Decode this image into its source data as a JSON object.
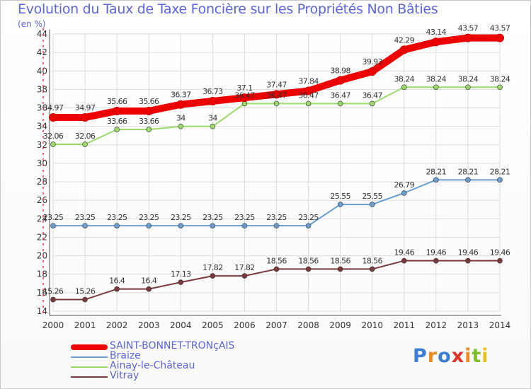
{
  "title": "Evolution du Taux de Taxe Foncière sur les Propriétés Non Bâties",
  "unit_label": "(en %)",
  "logo": "Proxiti",
  "chart_data": {
    "type": "line",
    "title": "Evolution du Taux de Taxe Foncière sur les Propriétés Non Bâties",
    "ylabel": "(en %)",
    "ylim": [
      14,
      44
    ],
    "yticks": [
      14,
      16,
      18,
      20,
      22,
      24,
      26,
      28,
      30,
      32,
      34,
      36,
      38,
      40,
      42,
      44
    ],
    "x": [
      "2000",
      "2001",
      "2002",
      "2003",
      "2004",
      "2005",
      "2006",
      "2007",
      "2008",
      "2009",
      "2010",
      "2011",
      "2012",
      "2013",
      "2014"
    ],
    "grid": true,
    "legend_position": "bottom-left",
    "series": [
      {
        "name": "SAINT-BONNET-TRONçAIS",
        "color": "#ee0000",
        "width": 10,
        "values": [
          34.97,
          34.97,
          35.66,
          35.66,
          36.37,
          36.73,
          37.1,
          37.47,
          37.84,
          38.98,
          39.93,
          42.29,
          43.14,
          43.57,
          43.57
        ],
        "labels": [
          "34.97",
          "34.97",
          "35.66",
          "35.66",
          "36.37",
          "36.73",
          "37.1",
          "37.47",
          "37.84",
          "38.98",
          "39.93",
          "42.29",
          "43.14",
          "43.57",
          "43.57"
        ]
      },
      {
        "name": "Braize",
        "color": "#6a9ed0",
        "width": 2,
        "values": [
          23.25,
          23.25,
          23.25,
          23.25,
          23.25,
          23.25,
          23.25,
          23.25,
          23.25,
          25.55,
          25.55,
          26.79,
          28.21,
          28.21,
          28.21
        ],
        "labels": [
          "23.25",
          "23.25",
          "23.25",
          "23.25",
          "23.25",
          "23.25",
          "23.25",
          "23.25",
          "23.25",
          "25.55",
          "25.55",
          "26.79",
          "28.21",
          "28.21",
          "28.21"
        ]
      },
      {
        "name": "Ainay-le-Château",
        "color": "#9ad96a",
        "width": 2,
        "values": [
          32.06,
          32.06,
          33.66,
          33.66,
          34,
          34,
          36.47,
          36.47,
          36.47,
          36.47,
          36.47,
          38.24,
          38.24,
          38.24,
          38.24
        ],
        "labels": [
          "32.06",
          "32.06",
          "33.66",
          "33.66",
          "34",
          "34",
          "36.47",
          "36.47",
          "36.47",
          "36.47",
          "36.47",
          "38.24",
          "38.24",
          "38.24",
          "38.24"
        ]
      },
      {
        "name": "Vitray",
        "color": "#7a3a3a",
        "width": 2,
        "values": [
          15.26,
          15.26,
          16.4,
          16.4,
          17.13,
          17.82,
          17.82,
          18.56,
          18.56,
          18.56,
          18.56,
          19.46,
          19.46,
          19.46,
          19.46
        ],
        "labels": [
          "15.26",
          "15.26",
          "16.4",
          "16.4",
          "17.13",
          "17.82",
          "17.82",
          "18.56",
          "18.56",
          "18.56",
          "18.56",
          "19.46",
          "19.46",
          "19.46",
          "19.46"
        ]
      }
    ]
  }
}
